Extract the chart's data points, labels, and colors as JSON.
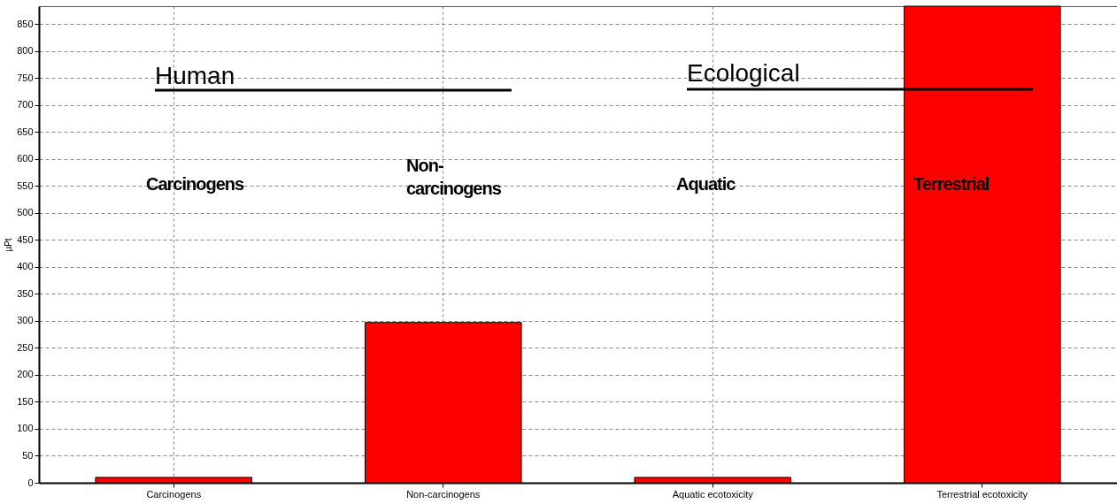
{
  "chart_data": {
    "type": "bar",
    "ylabel": "µPt",
    "categories": [
      "Carcinogens",
      "Non-carcinogens",
      "Aquatic ecotoxicity",
      "Terrestrial ecotoxicity"
    ],
    "values": [
      10,
      297,
      10,
      883
    ],
    "color": "#ff0000",
    "ylim": [
      0,
      883
    ],
    "yticks": [
      0,
      50,
      100,
      150,
      200,
      250,
      300,
      350,
      400,
      450,
      500,
      550,
      600,
      650,
      700,
      750,
      800,
      850
    ],
    "grid": true,
    "annotations": [
      "Human",
      "Ecological",
      "Carcinogens",
      "Non-\ncarcinogens",
      "Aquatic",
      "Terrestrial"
    ]
  }
}
